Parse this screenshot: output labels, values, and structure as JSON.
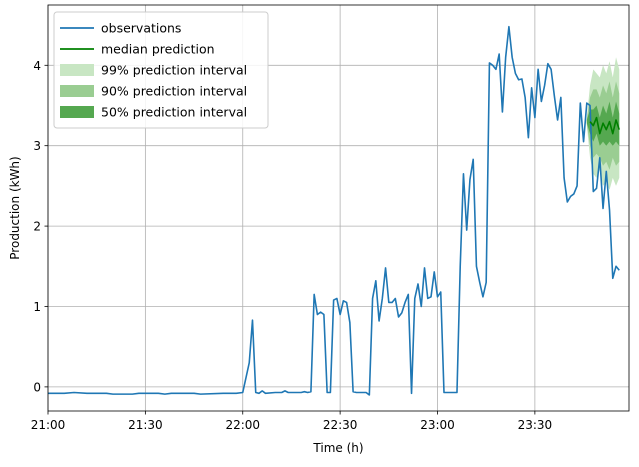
{
  "chart_data": {
    "type": "line",
    "title": "",
    "xlabel": "Time (h)",
    "ylabel": "Production (kWh)",
    "xlim": [
      "21:00",
      "23:59"
    ],
    "ylim": [
      -0.3,
      4.75
    ],
    "x_ticks": [
      "21:00",
      "21:30",
      "22:00",
      "22:30",
      "23:00",
      "23:30"
    ],
    "y_ticks": [
      "0",
      "1",
      "2",
      "3",
      "4"
    ],
    "grid": true,
    "legend_position": "top-left",
    "legend": [
      {
        "label": "observations",
        "kind": "line",
        "color": "#1f77b4"
      },
      {
        "label": "median prediction",
        "kind": "line",
        "color": "#008000"
      },
      {
        "label": "99% prediction interval",
        "kind": "patch",
        "color": "#c8e6c3"
      },
      {
        "label": "90% prediction interval",
        "kind": "patch",
        "color": "#9acd92"
      },
      {
        "label": "50% prediction interval",
        "kind": "patch",
        "color": "#55a850"
      }
    ],
    "series": [
      {
        "name": "observations",
        "color": "#1f77b4",
        "points": [
          [
            "21:00",
            -0.08
          ],
          [
            "21:05",
            -0.08
          ],
          [
            "21:08",
            -0.07
          ],
          [
            "21:12",
            -0.08
          ],
          [
            "21:18",
            -0.08
          ],
          [
            "21:20",
            -0.09
          ],
          [
            "21:26",
            -0.09
          ],
          [
            "21:28",
            -0.08
          ],
          [
            "21:34",
            -0.08
          ],
          [
            "21:36",
            -0.09
          ],
          [
            "21:38",
            -0.08
          ],
          [
            "21:45",
            -0.08
          ],
          [
            "21:47",
            -0.09
          ],
          [
            "21:54",
            -0.08
          ],
          [
            "21:58",
            -0.08
          ],
          [
            "22:00",
            -0.07
          ],
          [
            "22:02",
            0.3
          ],
          [
            "22:03",
            0.83
          ],
          [
            "22:04",
            -0.07
          ],
          [
            "22:05",
            -0.08
          ],
          [
            "22:06",
            -0.05
          ],
          [
            "22:07",
            -0.08
          ],
          [
            "22:10",
            -0.07
          ],
          [
            "22:12",
            -0.07
          ],
          [
            "22:13",
            -0.05
          ],
          [
            "22:14",
            -0.07
          ],
          [
            "22:18",
            -0.07
          ],
          [
            "22:19",
            -0.06
          ],
          [
            "22:20",
            -0.07
          ],
          [
            "22:21",
            -0.06
          ],
          [
            "22:22",
            1.15
          ],
          [
            "22:23",
            0.9
          ],
          [
            "22:24",
            0.93
          ],
          [
            "22:25",
            0.9
          ],
          [
            "22:26",
            -0.07
          ],
          [
            "22:27",
            -0.07
          ],
          [
            "22:28",
            1.08
          ],
          [
            "22:29",
            1.1
          ],
          [
            "22:30",
            0.9
          ],
          [
            "22:31",
            1.07
          ],
          [
            "22:32",
            1.05
          ],
          [
            "22:33",
            0.8
          ],
          [
            "22:34",
            -0.06
          ],
          [
            "22:35",
            -0.07
          ],
          [
            "22:38",
            -0.07
          ],
          [
            "22:39",
            -0.1
          ],
          [
            "22:40",
            1.1
          ],
          [
            "22:41",
            1.32
          ],
          [
            "22:42",
            0.82
          ],
          [
            "22:43",
            1.1
          ],
          [
            "22:44",
            1.48
          ],
          [
            "22:45",
            1.05
          ],
          [
            "22:46",
            1.05
          ],
          [
            "22:47",
            1.1
          ],
          [
            "22:48",
            0.87
          ],
          [
            "22:49",
            0.92
          ],
          [
            "22:50",
            1.05
          ],
          [
            "22:51",
            1.15
          ],
          [
            "22:52",
            -0.08
          ],
          [
            "22:53",
            1.1
          ],
          [
            "22:54",
            1.28
          ],
          [
            "22:55",
            1.0
          ],
          [
            "22:56",
            1.48
          ],
          [
            "22:57",
            1.1
          ],
          [
            "22:58",
            1.12
          ],
          [
            "22:59",
            1.43
          ],
          [
            "23:00",
            1.12
          ],
          [
            "23:01",
            1.18
          ],
          [
            "23:02",
            -0.07
          ],
          [
            "23:03",
            -0.07
          ],
          [
            "23:05",
            -0.07
          ],
          [
            "23:06",
            -0.07
          ],
          [
            "23:07",
            1.5
          ],
          [
            "23:08",
            2.65
          ],
          [
            "23:09",
            1.95
          ],
          [
            "23:10",
            2.58
          ],
          [
            "23:11",
            2.83
          ],
          [
            "23:12",
            1.5
          ],
          [
            "23:13",
            1.3
          ],
          [
            "23:14",
            1.12
          ],
          [
            "23:15",
            1.3
          ],
          [
            "23:16",
            4.03
          ],
          [
            "23:17",
            4.0
          ],
          [
            "23:18",
            3.95
          ],
          [
            "23:19",
            4.14
          ],
          [
            "23:20",
            3.42
          ],
          [
            "23:21",
            4.1
          ],
          [
            "23:22",
            4.48
          ],
          [
            "23:23",
            4.1
          ],
          [
            "23:24",
            3.9
          ],
          [
            "23:25",
            3.82
          ],
          [
            "23:26",
            3.83
          ],
          [
            "23:27",
            3.6
          ],
          [
            "23:28",
            3.1
          ],
          [
            "23:29",
            3.72
          ],
          [
            "23:30",
            3.35
          ],
          [
            "23:31",
            3.95
          ],
          [
            "23:32",
            3.55
          ],
          [
            "23:33",
            3.75
          ],
          [
            "23:34",
            4.02
          ],
          [
            "23:35",
            3.95
          ],
          [
            "23:36",
            3.62
          ],
          [
            "23:37",
            3.32
          ],
          [
            "23:38",
            3.6
          ],
          [
            "23:39",
            2.6
          ],
          [
            "23:40",
            2.3
          ],
          [
            "23:41",
            2.37
          ],
          [
            "23:42",
            2.4
          ],
          [
            "23:43",
            2.5
          ],
          [
            "23:44",
            3.53
          ],
          [
            "23:45",
            3.05
          ],
          [
            "23:46",
            3.53
          ],
          [
            "23:47",
            3.5
          ],
          [
            "23:48",
            2.43
          ],
          [
            "23:49",
            2.47
          ],
          [
            "23:50",
            2.85
          ],
          [
            "23:51",
            2.22
          ],
          [
            "23:52",
            2.68
          ],
          [
            "23:53",
            2.2
          ],
          [
            "23:54",
            1.35
          ],
          [
            "23:55",
            1.5
          ],
          [
            "23:56",
            1.45
          ]
        ]
      },
      {
        "name": "median prediction",
        "color": "#008000",
        "points": [
          [
            "23:47",
            3.3
          ],
          [
            "23:48",
            3.25
          ],
          [
            "23:49",
            3.35
          ],
          [
            "23:50",
            3.15
          ],
          [
            "23:51",
            3.28
          ],
          [
            "23:52",
            3.2
          ],
          [
            "23:53",
            3.3
          ],
          [
            "23:54",
            3.15
          ],
          [
            "23:55",
            3.32
          ],
          [
            "23:56",
            3.2
          ]
        ]
      }
    ],
    "bands": [
      {
        "name": "99% prediction interval",
        "color": "#c8e6c3",
        "x": [
          "23:46",
          "23:47",
          "23:48",
          "23:49",
          "23:50",
          "23:51",
          "23:52",
          "23:53",
          "23:54",
          "23:55",
          "23:56"
        ],
        "lower": [
          3.25,
          2.85,
          2.65,
          2.6,
          2.7,
          2.5,
          2.55,
          2.45,
          2.6,
          2.5,
          2.6
        ],
        "upper": [
          3.35,
          3.75,
          3.95,
          3.9,
          3.85,
          4.0,
          3.9,
          4.05,
          3.85,
          4.1,
          3.95
        ]
      },
      {
        "name": "90% prediction interval",
        "color": "#9acd92",
        "x": [
          "23:46",
          "23:47",
          "23:48",
          "23:49",
          "23:50",
          "23:51",
          "23:52",
          "23:53",
          "23:54",
          "23:55",
          "23:56"
        ],
        "lower": [
          3.27,
          3.0,
          2.85,
          2.9,
          2.85,
          2.75,
          2.8,
          2.7,
          2.85,
          2.75,
          2.8
        ],
        "upper": [
          3.33,
          3.6,
          3.7,
          3.7,
          3.6,
          3.75,
          3.65,
          3.8,
          3.6,
          3.8,
          3.65
        ]
      },
      {
        "name": "50% prediction interval",
        "color": "#55a850",
        "x": [
          "23:46",
          "23:47",
          "23:48",
          "23:49",
          "23:50",
          "23:51",
          "23:52",
          "23:53",
          "23:54",
          "23:55",
          "23:56"
        ],
        "lower": [
          3.28,
          3.15,
          3.05,
          3.15,
          3.0,
          3.05,
          3.0,
          3.05,
          3.0,
          3.05,
          3.0
        ],
        "upper": [
          3.32,
          3.45,
          3.45,
          3.5,
          3.35,
          3.5,
          3.4,
          3.55,
          3.35,
          3.55,
          3.4
        ]
      }
    ]
  }
}
